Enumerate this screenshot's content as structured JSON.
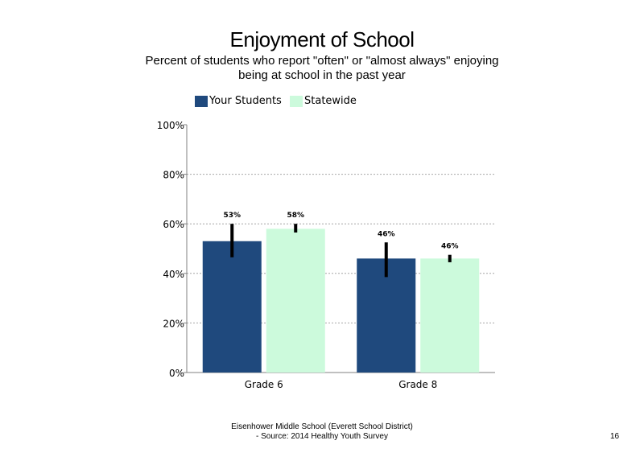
{
  "slide": {
    "title": "Enjoyment of School",
    "subtitle": "Percent of students  who report \"often\" or \"almost always\" enjoying\nbeing at school in the past year",
    "footer_line1": "Eisenhower Middle School (Everett School District)",
    "footer_line2": "- Source: 2014 Healthy  Youth Survey",
    "page_number": "16"
  },
  "chart_data": {
    "type": "bar",
    "categories": [
      "Grade 6",
      "Grade 8"
    ],
    "series": [
      {
        "name": "Your Students",
        "color": "#1f497d",
        "values": [
          53,
          46
        ],
        "labels": [
          "53%",
          "46%"
        ],
        "error_low": [
          46.5,
          38.5
        ],
        "error_high": [
          60,
          52.5
        ]
      },
      {
        "name": "Statewide",
        "color": "#ccfadc",
        "values": [
          58,
          46
        ],
        "labels": [
          "58%",
          "46%"
        ],
        "error_low": [
          56.5,
          44.5
        ],
        "error_high": [
          60,
          47.5
        ]
      }
    ],
    "y_ticks": [
      0,
      20,
      40,
      60,
      80,
      100
    ],
    "y_tick_labels": [
      "0%",
      "20%",
      "40%",
      "60%",
      "80%",
      "100%"
    ],
    "ylim": [
      0,
      100
    ],
    "grid": "dotted horizontal gridlines",
    "legend_position": "top-left"
  }
}
